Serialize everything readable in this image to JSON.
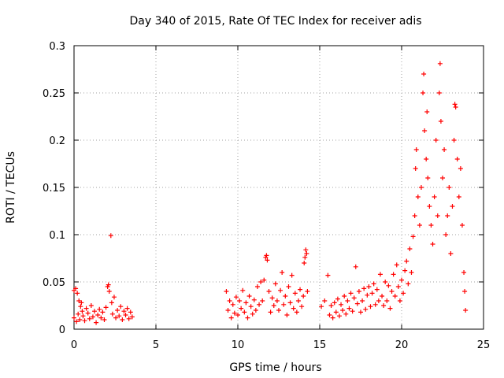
{
  "chart_data": {
    "type": "scatter",
    "title": "Day 340 of 2015, Rate Of TEC Index for receiver adis",
    "xlabel": "GPS time / hours",
    "ylabel": "ROTI / TECUs",
    "xlim": [
      0,
      25
    ],
    "ylim": [
      0,
      0.3
    ],
    "xticks": [
      0,
      5,
      10,
      15,
      20,
      25
    ],
    "yticks": [
      0,
      0.05,
      0.1,
      0.15,
      0.2,
      0.25,
      0.3
    ],
    "xtick_labels": [
      "0",
      "5",
      "10",
      "15",
      "20",
      "25"
    ],
    "ytick_labels": [
      "0",
      "0.05",
      "0.1",
      "0.15",
      "0.2",
      "0.25",
      "0.3"
    ],
    "grid": true,
    "marker": "+",
    "color": "#ff0000",
    "series": [
      {
        "name": "ROTI",
        "points": [
          [
            0.0,
            0.041
          ],
          [
            0.1,
            0.043
          ],
          [
            0.2,
            0.038
          ],
          [
            0.3,
            0.03
          ],
          [
            0.4,
            0.024
          ],
          [
            0.5,
            0.019
          ],
          [
            0.0,
            0.012
          ],
          [
            0.15,
            0.008
          ],
          [
            0.25,
            0.016
          ],
          [
            0.35,
            0.01
          ],
          [
            0.45,
            0.028
          ],
          [
            0.55,
            0.014
          ],
          [
            0.65,
            0.009
          ],
          [
            0.75,
            0.022
          ],
          [
            0.85,
            0.017
          ],
          [
            0.95,
            0.011
          ],
          [
            1.05,
            0.025
          ],
          [
            1.15,
            0.013
          ],
          [
            1.25,
            0.019
          ],
          [
            1.35,
            0.007
          ],
          [
            1.45,
            0.015
          ],
          [
            1.55,
            0.021
          ],
          [
            1.65,
            0.012
          ],
          [
            1.75,
            0.018
          ],
          [
            1.85,
            0.01
          ],
          [
            1.95,
            0.023
          ],
          [
            2.05,
            0.045
          ],
          [
            2.1,
            0.047
          ],
          [
            2.15,
            0.04
          ],
          [
            2.25,
            0.099
          ],
          [
            2.3,
            0.028
          ],
          [
            2.35,
            0.016
          ],
          [
            2.45,
            0.034
          ],
          [
            2.55,
            0.012
          ],
          [
            2.65,
            0.02
          ],
          [
            2.75,
            0.014
          ],
          [
            2.85,
            0.024
          ],
          [
            2.95,
            0.01
          ],
          [
            3.05,
            0.019
          ],
          [
            3.15,
            0.015
          ],
          [
            3.25,
            0.022
          ],
          [
            3.35,
            0.011
          ],
          [
            3.45,
            0.018
          ],
          [
            3.55,
            0.013
          ],
          [
            9.3,
            0.04
          ],
          [
            9.4,
            0.02
          ],
          [
            9.5,
            0.03
          ],
          [
            9.6,
            0.012
          ],
          [
            9.7,
            0.026
          ],
          [
            9.8,
            0.017
          ],
          [
            9.9,
            0.034
          ],
          [
            10.0,
            0.015
          ],
          [
            10.1,
            0.03
          ],
          [
            10.2,
            0.022
          ],
          [
            10.3,
            0.041
          ],
          [
            10.4,
            0.018
          ],
          [
            10.5,
            0.028
          ],
          [
            10.6,
            0.012
          ],
          [
            10.7,
            0.035
          ],
          [
            10.8,
            0.024
          ],
          [
            10.9,
            0.016
          ],
          [
            11.0,
            0.031
          ],
          [
            11.1,
            0.02
          ],
          [
            11.2,
            0.045
          ],
          [
            11.3,
            0.026
          ],
          [
            11.4,
            0.05
          ],
          [
            11.5,
            0.03
          ],
          [
            11.6,
            0.052
          ],
          [
            11.7,
            0.076
          ],
          [
            11.75,
            0.078
          ],
          [
            11.8,
            0.073
          ],
          [
            11.9,
            0.04
          ],
          [
            12.0,
            0.018
          ],
          [
            12.1,
            0.033
          ],
          [
            12.2,
            0.025
          ],
          [
            12.3,
            0.048
          ],
          [
            12.4,
            0.03
          ],
          [
            12.5,
            0.02
          ],
          [
            12.6,
            0.041
          ],
          [
            12.7,
            0.06
          ],
          [
            12.8,
            0.026
          ],
          [
            12.9,
            0.035
          ],
          [
            13.0,
            0.015
          ],
          [
            13.1,
            0.045
          ],
          [
            13.2,
            0.028
          ],
          [
            13.3,
            0.057
          ],
          [
            13.4,
            0.022
          ],
          [
            13.5,
            0.038
          ],
          [
            13.6,
            0.018
          ],
          [
            13.7,
            0.03
          ],
          [
            13.8,
            0.042
          ],
          [
            13.9,
            0.024
          ],
          [
            14.0,
            0.035
          ],
          [
            14.05,
            0.07
          ],
          [
            14.1,
            0.076
          ],
          [
            14.15,
            0.084
          ],
          [
            14.2,
            0.08
          ],
          [
            14.25,
            0.04
          ],
          [
            15.1,
            0.024
          ],
          [
            15.3,
            0.03
          ],
          [
            15.5,
            0.057
          ],
          [
            15.6,
            0.015
          ],
          [
            15.7,
            0.025
          ],
          [
            15.8,
            0.012
          ],
          [
            15.9,
            0.028
          ],
          [
            16.0,
            0.018
          ],
          [
            16.1,
            0.032
          ],
          [
            16.2,
            0.014
          ],
          [
            16.3,
            0.026
          ],
          [
            16.4,
            0.02
          ],
          [
            16.5,
            0.035
          ],
          [
            16.6,
            0.016
          ],
          [
            16.7,
            0.03
          ],
          [
            16.8,
            0.022
          ],
          [
            16.9,
            0.038
          ],
          [
            17.0,
            0.019
          ],
          [
            17.1,
            0.033
          ],
          [
            17.2,
            0.066
          ],
          [
            17.3,
            0.027
          ],
          [
            17.4,
            0.04
          ],
          [
            17.5,
            0.018
          ],
          [
            17.6,
            0.03
          ],
          [
            17.7,
            0.043
          ],
          [
            17.8,
            0.021
          ],
          [
            17.9,
            0.036
          ],
          [
            18.0,
            0.045
          ],
          [
            18.1,
            0.024
          ],
          [
            18.2,
            0.038
          ],
          [
            18.3,
            0.048
          ],
          [
            18.4,
            0.026
          ],
          [
            18.5,
            0.042
          ],
          [
            18.6,
            0.03
          ],
          [
            18.7,
            0.058
          ],
          [
            18.8,
            0.035
          ],
          [
            18.9,
            0.025
          ],
          [
            19.0,
            0.05
          ],
          [
            19.1,
            0.03
          ],
          [
            19.2,
            0.046
          ],
          [
            19.3,
            0.022
          ],
          [
            19.4,
            0.04
          ],
          [
            19.5,
            0.058
          ],
          [
            19.6,
            0.035
          ],
          [
            19.7,
            0.068
          ],
          [
            19.8,
            0.045
          ],
          [
            19.9,
            0.03
          ],
          [
            20.0,
            0.052
          ],
          [
            20.1,
            0.038
          ],
          [
            20.2,
            0.062
          ],
          [
            20.3,
            0.072
          ],
          [
            20.4,
            0.048
          ],
          [
            20.5,
            0.085
          ],
          [
            20.6,
            0.06
          ],
          [
            20.7,
            0.098
          ],
          [
            20.8,
            0.12
          ],
          [
            20.85,
            0.17
          ],
          [
            20.9,
            0.19
          ],
          [
            21.0,
            0.14
          ],
          [
            21.1,
            0.11
          ],
          [
            21.2,
            0.15
          ],
          [
            21.3,
            0.25
          ],
          [
            21.35,
            0.27
          ],
          [
            21.4,
            0.21
          ],
          [
            21.5,
            0.18
          ],
          [
            21.55,
            0.23
          ],
          [
            21.6,
            0.16
          ],
          [
            21.7,
            0.13
          ],
          [
            21.8,
            0.11
          ],
          [
            21.9,
            0.09
          ],
          [
            22.0,
            0.14
          ],
          [
            22.1,
            0.2
          ],
          [
            22.2,
            0.12
          ],
          [
            22.3,
            0.25
          ],
          [
            22.35,
            0.281
          ],
          [
            22.4,
            0.22
          ],
          [
            22.5,
            0.16
          ],
          [
            22.6,
            0.19
          ],
          [
            22.7,
            0.1
          ],
          [
            22.8,
            0.12
          ],
          [
            22.9,
            0.15
          ],
          [
            23.0,
            0.08
          ],
          [
            23.1,
            0.13
          ],
          [
            23.2,
            0.2
          ],
          [
            23.25,
            0.238
          ],
          [
            23.3,
            0.235
          ],
          [
            23.4,
            0.18
          ],
          [
            23.5,
            0.14
          ],
          [
            23.6,
            0.17
          ],
          [
            23.7,
            0.11
          ],
          [
            23.8,
            0.06
          ],
          [
            23.85,
            0.04
          ],
          [
            23.9,
            0.02
          ]
        ]
      }
    ]
  }
}
